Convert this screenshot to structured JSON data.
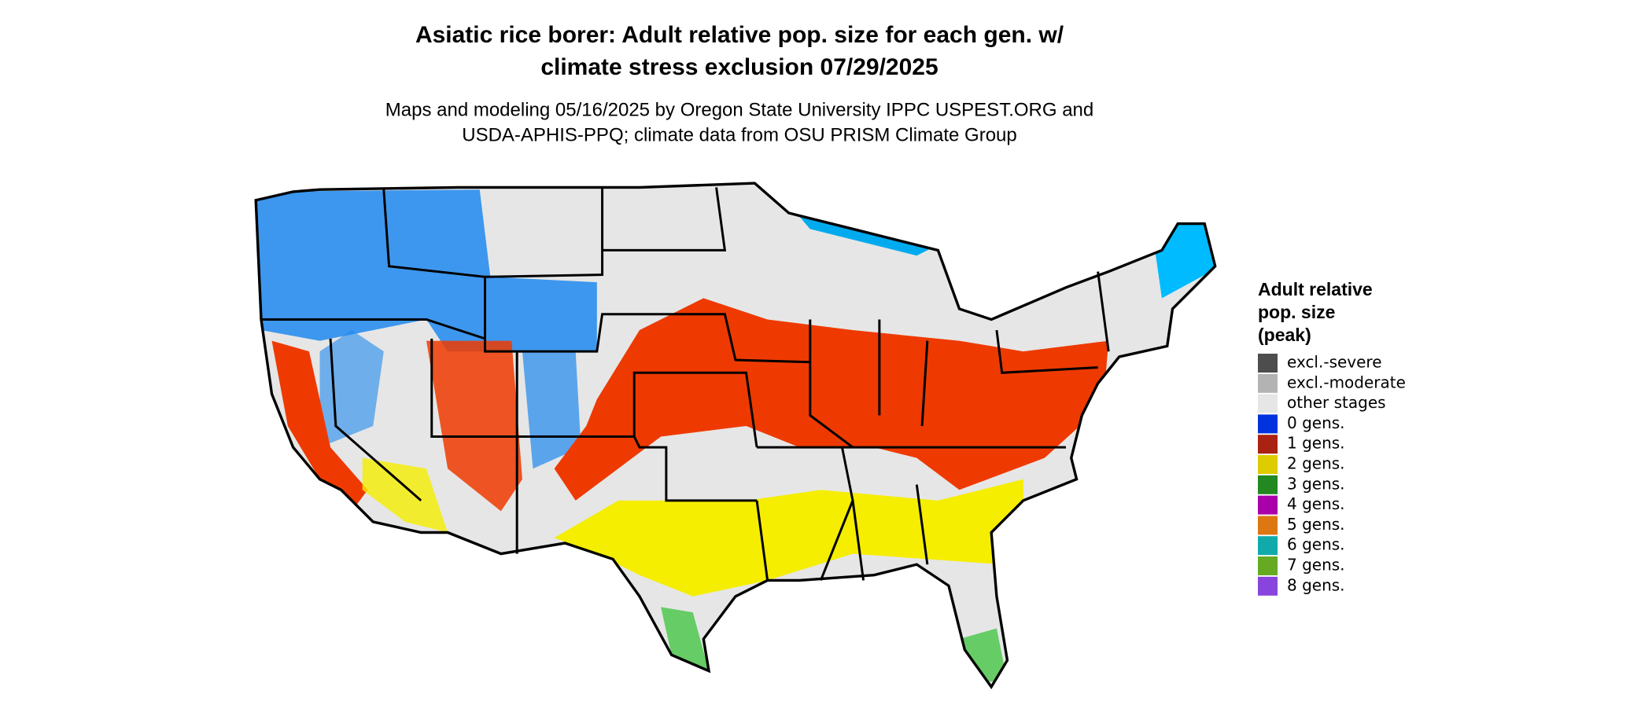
{
  "header": {
    "title": [
      "Asiatic rice borer: Adult relative pop. size for each gen. w/",
      "climate stress exclusion 07/29/2025"
    ],
    "subtitle": [
      "Maps and modeling 05/16/2025 by Oregon State University IPPC USPEST.ORG and",
      "USDA-APHIS-PPQ; climate data from OSU PRISM Climate Group"
    ]
  },
  "legend": {
    "title": [
      "Adult relative",
      "pop. size",
      "(peak)"
    ],
    "items": [
      {
        "label": "excl.-severe",
        "color": "#4d4d4d"
      },
      {
        "label": "excl.-moderate",
        "color": "#b3b3b3"
      },
      {
        "label": "other stages",
        "color": "#e6e6e6"
      },
      {
        "label": "0 gens.",
        "color": "#0033dd"
      },
      {
        "label": "1 gens.",
        "color": "#aa2211"
      },
      {
        "label": "2 gens.",
        "color": "#ddcc00"
      },
      {
        "label": "3 gens.",
        "color": "#228822"
      },
      {
        "label": "4 gens.",
        "color": "#aa00aa"
      },
      {
        "label": "5 gens.",
        "color": "#dd7711"
      },
      {
        "label": "6 gens.",
        "color": "#11aaaa"
      },
      {
        "label": "7 gens.",
        "color": "#66aa22"
      },
      {
        "label": "8 gens.",
        "color": "#8844dd"
      }
    ]
  }
}
